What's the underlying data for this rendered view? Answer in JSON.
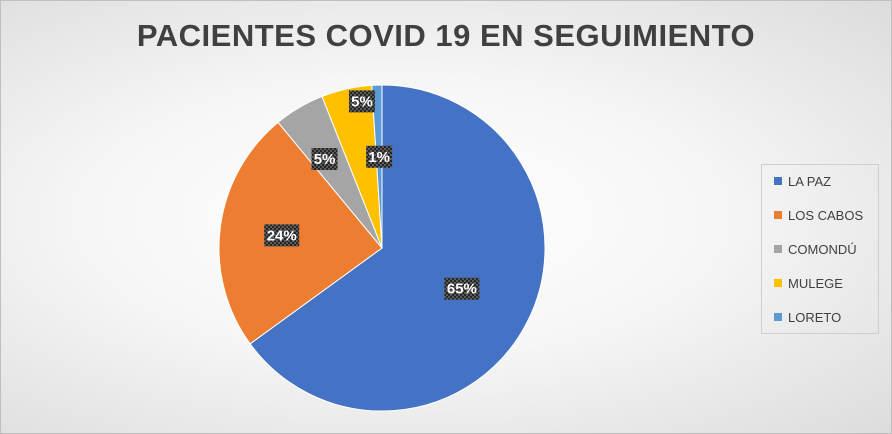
{
  "chart_data": {
    "type": "pie",
    "title": "PACIENTES COVID 19 EN SEGUIMIENTO",
    "categories": [
      "LA PAZ",
      "LOS CABOS",
      "COMONDÚ",
      "MULEGE",
      "LORETO"
    ],
    "values": [
      65,
      24,
      5,
      5,
      1
    ],
    "data_labels": [
      "65%",
      "24%",
      "5%",
      "5%",
      "1%"
    ],
    "colors": [
      "#4472c4",
      "#ed7d31",
      "#a5a5a5",
      "#ffc000",
      "#5b9bd5"
    ],
    "legend_position": "right",
    "grid": false
  }
}
